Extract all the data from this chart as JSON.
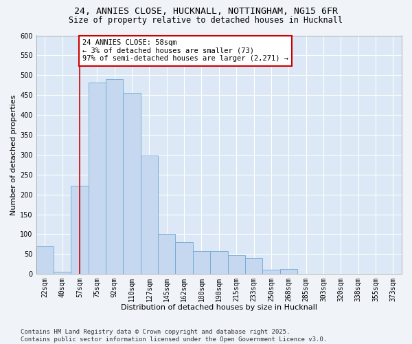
{
  "title_line1": "24, ANNIES CLOSE, HUCKNALL, NOTTINGHAM, NG15 6FR",
  "title_line2": "Size of property relative to detached houses in Hucknall",
  "xlabel": "Distribution of detached houses by size in Hucknall",
  "ylabel": "Number of detached properties",
  "categories": [
    "22sqm",
    "40sqm",
    "57sqm",
    "75sqm",
    "92sqm",
    "110sqm",
    "127sqm",
    "145sqm",
    "162sqm",
    "180sqm",
    "198sqm",
    "215sqm",
    "233sqm",
    "250sqm",
    "268sqm",
    "285sqm",
    "303sqm",
    "320sqm",
    "338sqm",
    "355sqm",
    "373sqm"
  ],
  "bar_heights": [
    70,
    5,
    222,
    482,
    490,
    455,
    298,
    100,
    80,
    57,
    57,
    47,
    40,
    10,
    13,
    0,
    0,
    0,
    0,
    0,
    0
  ],
  "bar_color": "#c5d8f0",
  "bar_edge_color": "#6fa8d4",
  "property_line_x": 2,
  "annotation_text": "24 ANNIES CLOSE: 58sqm\n← 3% of detached houses are smaller (73)\n97% of semi-detached houses are larger (2,271) →",
  "annotation_box_color": "#ffffff",
  "annotation_box_edge": "#cc0000",
  "annotation_line_color": "#cc0000",
  "ylim": [
    0,
    600
  ],
  "yticks": [
    0,
    50,
    100,
    150,
    200,
    250,
    300,
    350,
    400,
    450,
    500,
    550,
    600
  ],
  "fig_background_color": "#f0f4f8",
  "plot_bg_color": "#dce8f5",
  "grid_color": "#ffffff",
  "footer": "Contains HM Land Registry data © Crown copyright and database right 2025.\nContains public sector information licensed under the Open Government Licence v3.0.",
  "title_fontsize": 9.5,
  "subtitle_fontsize": 8.5,
  "axis_label_fontsize": 8,
  "tick_fontsize": 7,
  "annotation_fontsize": 7.5,
  "footer_fontsize": 6.5
}
